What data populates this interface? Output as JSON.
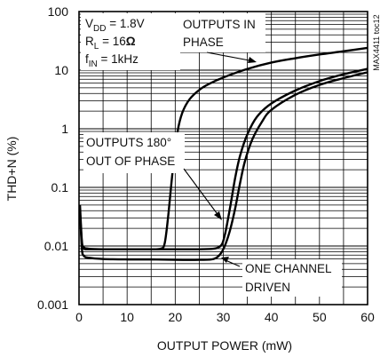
{
  "chart_data": {
    "type": "line",
    "title": "",
    "xlabel": "OUTPUT POWER (mW)",
    "ylabel": "THD+N (%)",
    "xlim": [
      0,
      60
    ],
    "ylim": [
      0.001,
      100
    ],
    "yscale": "log",
    "grid": true,
    "x_ticks": [
      0,
      10,
      20,
      30,
      40,
      50,
      60
    ],
    "x_tick_labels": [
      "0",
      "10",
      "20",
      "30",
      "40",
      "50",
      "60"
    ],
    "y_ticks": [
      0.001,
      0.01,
      0.1,
      1,
      10,
      100
    ],
    "y_tick_labels": [
      "0.001",
      "0.01",
      "0.1",
      "1",
      "10",
      "100"
    ],
    "conditions": {
      "vdd": {
        "sym": "V",
        "sub": "DD",
        "val": " = 1.8V"
      },
      "rl": {
        "sym": "R",
        "sub": "L",
        "val": " = 16",
        "unit": "Ω"
      },
      "fin": {
        "sym": "f",
        "sub": "IN",
        "val": " = 1kHz"
      }
    },
    "annotations": {
      "in_phase": [
        "OUTPUTS IN",
        "PHASE"
      ],
      "out_phase": [
        "OUTPUTS 180°",
        "OUT OF PHASE"
      ],
      "one_channel": [
        "ONE CHANNEL",
        "DRIVEN"
      ]
    },
    "side_label": "MAX4411 toc12",
    "series": [
      {
        "key": "in_phase",
        "x": [
          0.2,
          0.6,
          1,
          2,
          5,
          10,
          15,
          17,
          17.8,
          18.5,
          19.5,
          20.5,
          21.5,
          23,
          25,
          27,
          30,
          35,
          40,
          45,
          50,
          55,
          60
        ],
        "y": [
          0.05,
          0.012,
          0.0095,
          0.009,
          0.0088,
          0.0088,
          0.0088,
          0.009,
          0.011,
          0.03,
          0.2,
          0.9,
          1.9,
          3.2,
          4.6,
          5.8,
          7.5,
          10.5,
          13.5,
          16,
          18.5,
          21,
          24
        ]
      },
      {
        "key": "out_phase",
        "x": [
          0.2,
          0.6,
          1,
          2,
          5,
          10,
          15,
          20,
          25,
          28,
          29,
          29.8,
          30.5,
          31.5,
          32.5,
          33.5,
          35,
          37,
          40,
          45,
          50,
          55,
          60
        ],
        "y": [
          0.04,
          0.011,
          0.009,
          0.0088,
          0.0088,
          0.0088,
          0.0088,
          0.0088,
          0.0088,
          0.009,
          0.0095,
          0.011,
          0.018,
          0.05,
          0.15,
          0.35,
          0.8,
          1.6,
          2.7,
          4.5,
          6.5,
          8.5,
          10.5
        ]
      },
      {
        "key": "one_channel",
        "x": [
          0.2,
          0.6,
          1,
          2,
          5,
          10,
          15,
          20,
          25,
          28,
          29.5,
          30.5,
          31.5,
          32.5,
          33.5,
          34.5,
          36,
          38,
          40,
          45,
          50,
          55,
          60
        ],
        "y": [
          0.04,
          0.009,
          0.0068,
          0.0063,
          0.006,
          0.0059,
          0.0059,
          0.0058,
          0.0058,
          0.006,
          0.0075,
          0.011,
          0.02,
          0.045,
          0.12,
          0.28,
          0.65,
          1.3,
          2.1,
          3.8,
          5.6,
          7.3,
          9.2
        ]
      }
    ]
  }
}
